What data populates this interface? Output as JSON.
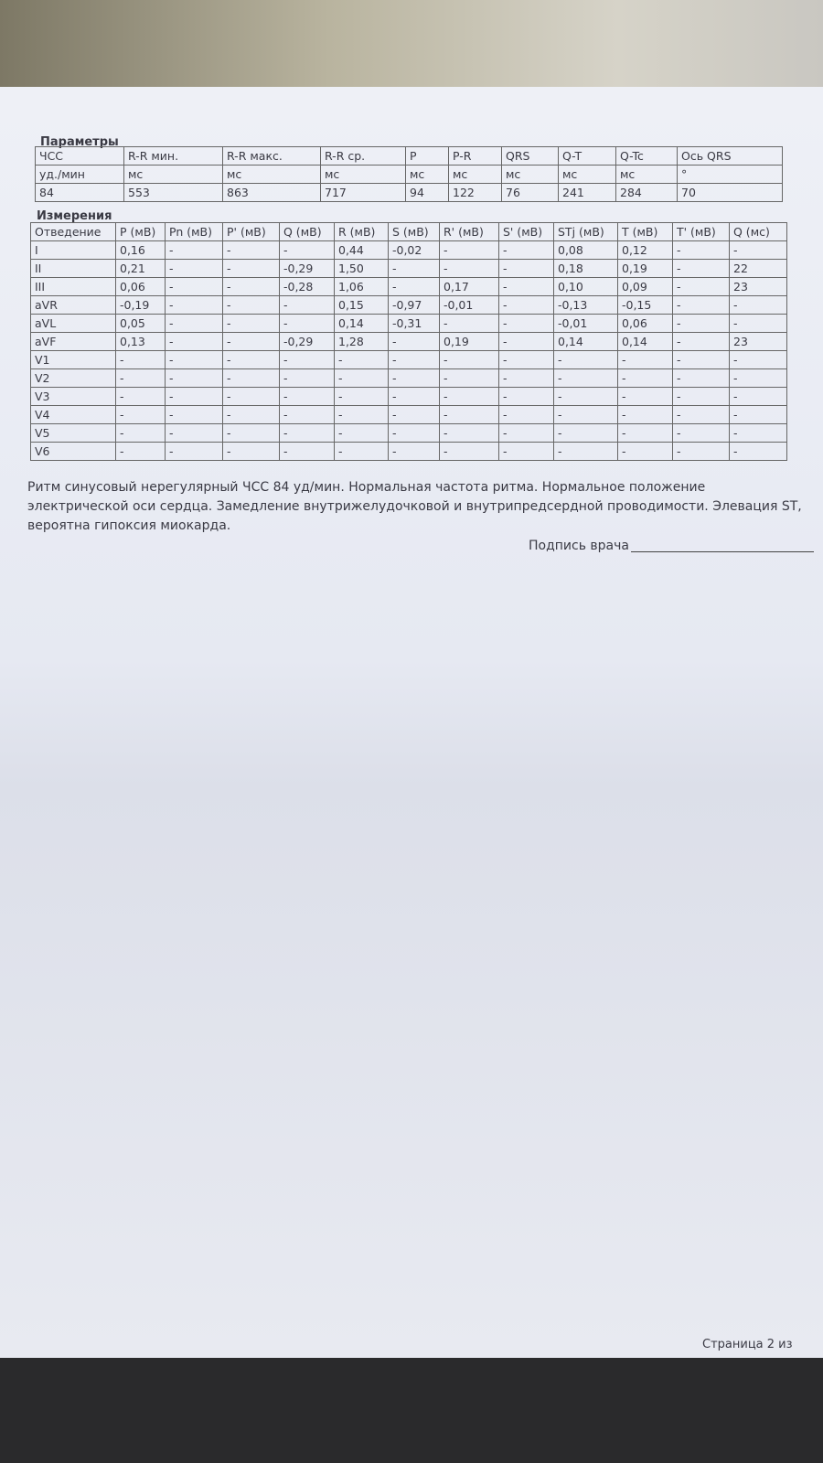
{
  "parameters": {
    "title": "Параметры",
    "rows": [
      [
        "ЧСС",
        "R-R мин.",
        "R-R макс.",
        "R-R ср.",
        "P",
        "P-R",
        "QRS",
        "Q-T",
        "Q-Tc",
        "Ось QRS"
      ],
      [
        "уд./мин",
        "мс",
        "мс",
        "мс",
        "мс",
        "мс",
        "мс",
        "мс",
        "мс",
        "°"
      ],
      [
        "84",
        "553",
        "863",
        "717",
        "94",
        "122",
        "76",
        "241",
        "284",
        "70"
      ]
    ]
  },
  "measurements": {
    "title": "Измерения",
    "rows": [
      [
        "Отведение",
        "P (мВ)",
        "Pn (мВ)",
        "P' (мВ)",
        "Q (мВ)",
        "R (мВ)",
        "S (мВ)",
        "R' (мВ)",
        "S' (мВ)",
        "STj (мВ)",
        "T (мВ)",
        "T' (мВ)",
        "Q (мс)"
      ],
      [
        "I",
        "0,16",
        "-",
        "-",
        "-",
        "0,44",
        "-0,02",
        "-",
        "-",
        "0,08",
        "0,12",
        "-",
        "-"
      ],
      [
        "II",
        "0,21",
        "-",
        "-",
        "-0,29",
        "1,50",
        "-",
        "-",
        "-",
        "0,18",
        "0,19",
        "-",
        "22"
      ],
      [
        "III",
        "0,06",
        "-",
        "-",
        "-0,28",
        "1,06",
        "-",
        "0,17",
        "-",
        "0,10",
        "0,09",
        "-",
        "23"
      ],
      [
        "aVR",
        "-0,19",
        "-",
        "-",
        "-",
        "0,15",
        "-0,97",
        "-0,01",
        "-",
        "-0,13",
        "-0,15",
        "-",
        "-"
      ],
      [
        "aVL",
        "0,05",
        "-",
        "-",
        "-",
        "0,14",
        "-0,31",
        "-",
        "-",
        "-0,01",
        "0,06",
        "-",
        "-"
      ],
      [
        "aVF",
        "0,13",
        "-",
        "-",
        "-0,29",
        "1,28",
        "-",
        "0,19",
        "-",
        "0,14",
        "0,14",
        "-",
        "23"
      ],
      [
        "V1",
        "-",
        "-",
        "-",
        "-",
        "-",
        "-",
        "-",
        "-",
        "-",
        "-",
        "-",
        "-"
      ],
      [
        "V2",
        "-",
        "-",
        "-",
        "-",
        "-",
        "-",
        "-",
        "-",
        "-",
        "-",
        "-",
        "-"
      ],
      [
        "V3",
        "-",
        "-",
        "-",
        "-",
        "-",
        "-",
        "-",
        "-",
        "-",
        "-",
        "-",
        "-"
      ],
      [
        "V4",
        "-",
        "-",
        "-",
        "-",
        "-",
        "-",
        "-",
        "-",
        "-",
        "-",
        "-",
        "-"
      ],
      [
        "V5",
        "-",
        "-",
        "-",
        "-",
        "-",
        "-",
        "-",
        "-",
        "-",
        "-",
        "-",
        "-"
      ],
      [
        "V6",
        "-",
        "-",
        "-",
        "-",
        "-",
        "-",
        "-",
        "-",
        "-",
        "-",
        "-",
        "-"
      ]
    ]
  },
  "conclusion": "Ритм синусовый нерегулярный ЧСС 84 уд/мин. Нормальная частота ритма. Нормальное положение электрической оси сердца. Замедление внутрижелудочковой и внутрипредсердной проводимости.  Элевация ST, вероятна гипоксия миокарда.",
  "signature": "Подпись врача",
  "footer": "Страница 2 из"
}
